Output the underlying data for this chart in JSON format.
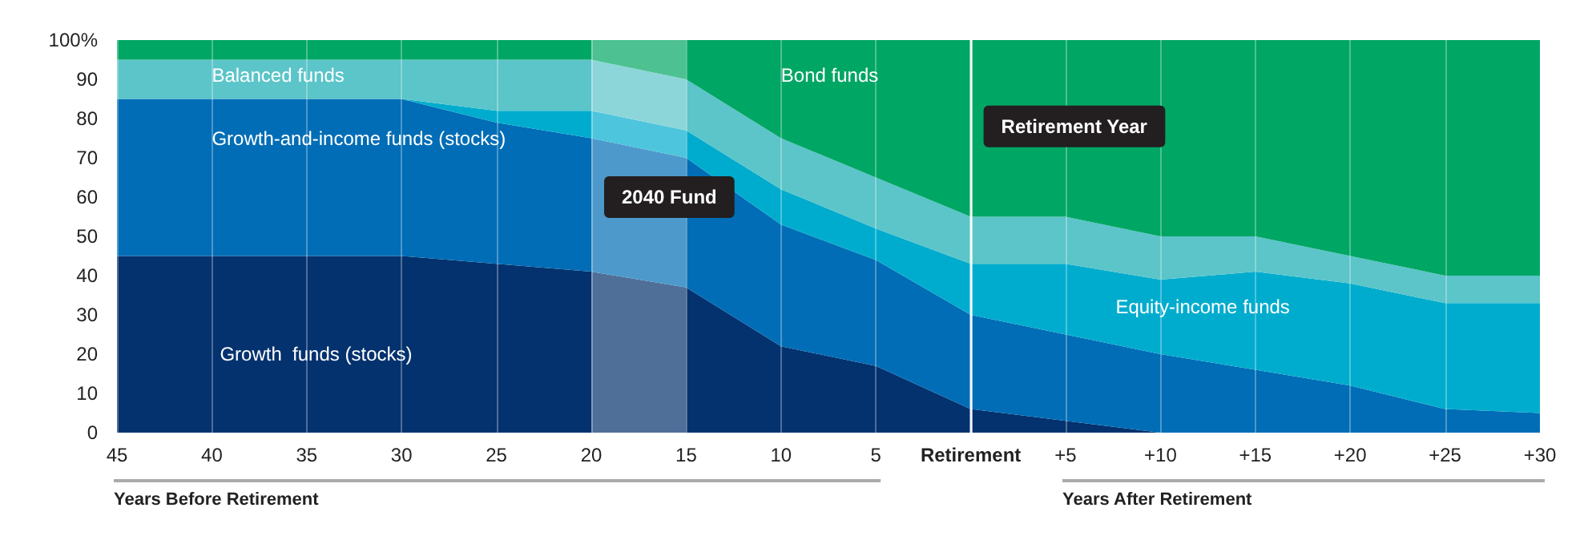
{
  "chart_data": {
    "type": "area",
    "stacked": true,
    "categories": [
      "45",
      "40",
      "35",
      "30",
      "25",
      "20",
      "15",
      "10",
      "5",
      "Retirement",
      "+5",
      "+10",
      "+15",
      "+20",
      "+25",
      "+30"
    ],
    "series": [
      {
        "name": "Growth  funds (stocks)",
        "color": "#04326e",
        "values": [
          45,
          45,
          45,
          45,
          43,
          41,
          37,
          22,
          17,
          6,
          3,
          0,
          0,
          0,
          0,
          0
        ]
      },
      {
        "name": "Growth-and-income funds (stocks)",
        "color": "#006db6",
        "values": [
          40,
          40,
          40,
          40,
          36,
          34,
          33,
          31,
          27,
          24,
          22,
          20,
          16,
          12,
          6,
          5
        ]
      },
      {
        "name": "Equity-income funds",
        "color": "#00acce",
        "values": [
          0,
          0,
          0,
          0,
          3,
          7,
          7,
          9,
          8,
          13,
          18,
          19,
          25,
          26,
          27,
          28
        ]
      },
      {
        "name": "Balanced funds",
        "color": "#5bc5c9",
        "values": [
          10,
          10,
          10,
          10,
          13,
          13,
          13,
          13,
          13,
          12,
          12,
          11,
          9,
          7,
          7,
          7
        ]
      },
      {
        "name": "Bond funds",
        "color": "#00a664",
        "values": [
          5,
          5,
          5,
          5,
          5,
          5,
          10,
          25,
          35,
          45,
          45,
          50,
          50,
          55,
          60,
          60
        ]
      }
    ],
    "ylim": [
      0,
      100
    ],
    "yticks": [
      0,
      10,
      20,
      30,
      40,
      50,
      60,
      70,
      80,
      90,
      {
        "value": 100,
        "label": "100%"
      }
    ],
    "grid": "x",
    "legend": false,
    "bands": [
      {
        "axis": "x",
        "from": "20",
        "to": "15",
        "label": "2040 Fund",
        "color": "#ffffff"
      }
    ],
    "ref_lines": [
      {
        "axis": "x",
        "value": "Retirement",
        "label": "Retirement Year",
        "color": "#ffffff"
      }
    ],
    "annotations": [
      "Years Before Retirement",
      "Years After Retirement"
    ]
  }
}
